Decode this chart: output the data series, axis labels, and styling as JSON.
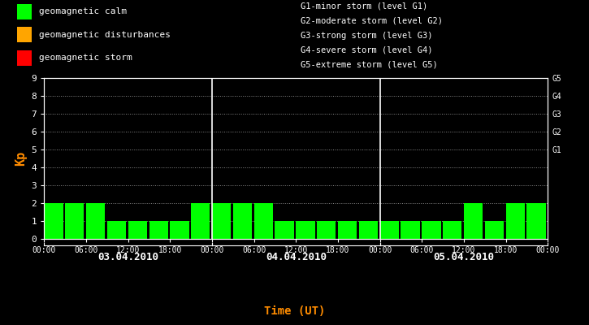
{
  "background_color": "#000000",
  "plot_bg_color": "#000000",
  "bar_color_calm": "#00ff00",
  "bar_color_disturb": "#ffa500",
  "bar_color_storm": "#ff0000",
  "text_color": "#ffffff",
  "kp_label_color": "#ff8c00",
  "time_label_color": "#ff8c00",
  "date_label_color": "#ffffff",
  "grid_color": "#ffffff",
  "separator_color": "#ffffff",
  "days": [
    "03.04.2010",
    "04.04.2010",
    "05.04.2010"
  ],
  "kp_values": [
    [
      2,
      2,
      2,
      1,
      1,
      1,
      1,
      2
    ],
    [
      2,
      2,
      2,
      1,
      1,
      1,
      1,
      1
    ],
    [
      1,
      1,
      1,
      1,
      2,
      1,
      2,
      2
    ]
  ],
  "ylim": [
    0,
    9
  ],
  "yticks": [
    0,
    1,
    2,
    3,
    4,
    5,
    6,
    7,
    8,
    9
  ],
  "right_labels": [
    [
      5,
      "G1"
    ],
    [
      6,
      "G2"
    ],
    [
      7,
      "G3"
    ],
    [
      8,
      "G4"
    ],
    [
      9,
      "G5"
    ]
  ],
  "legend_items": [
    {
      "label": "geomagnetic calm",
      "color": "#00ff00"
    },
    {
      "label": "geomagnetic disturbances",
      "color": "#ffa500"
    },
    {
      "label": "geomagnetic storm",
      "color": "#ff0000"
    }
  ],
  "storm_legend": [
    "G1-minor storm (level G1)",
    "G2-moderate storm (level G2)",
    "G3-strong storm (level G3)",
    "G4-severe storm (level G4)",
    "G5-extreme storm (level G5)"
  ],
  "xlabel": "Time (UT)",
  "ylabel": "Kp",
  "time_ticks": [
    "00:00",
    "06:00",
    "12:00",
    "18:00"
  ],
  "calm_threshold": 4,
  "disturb_threshold": 5
}
